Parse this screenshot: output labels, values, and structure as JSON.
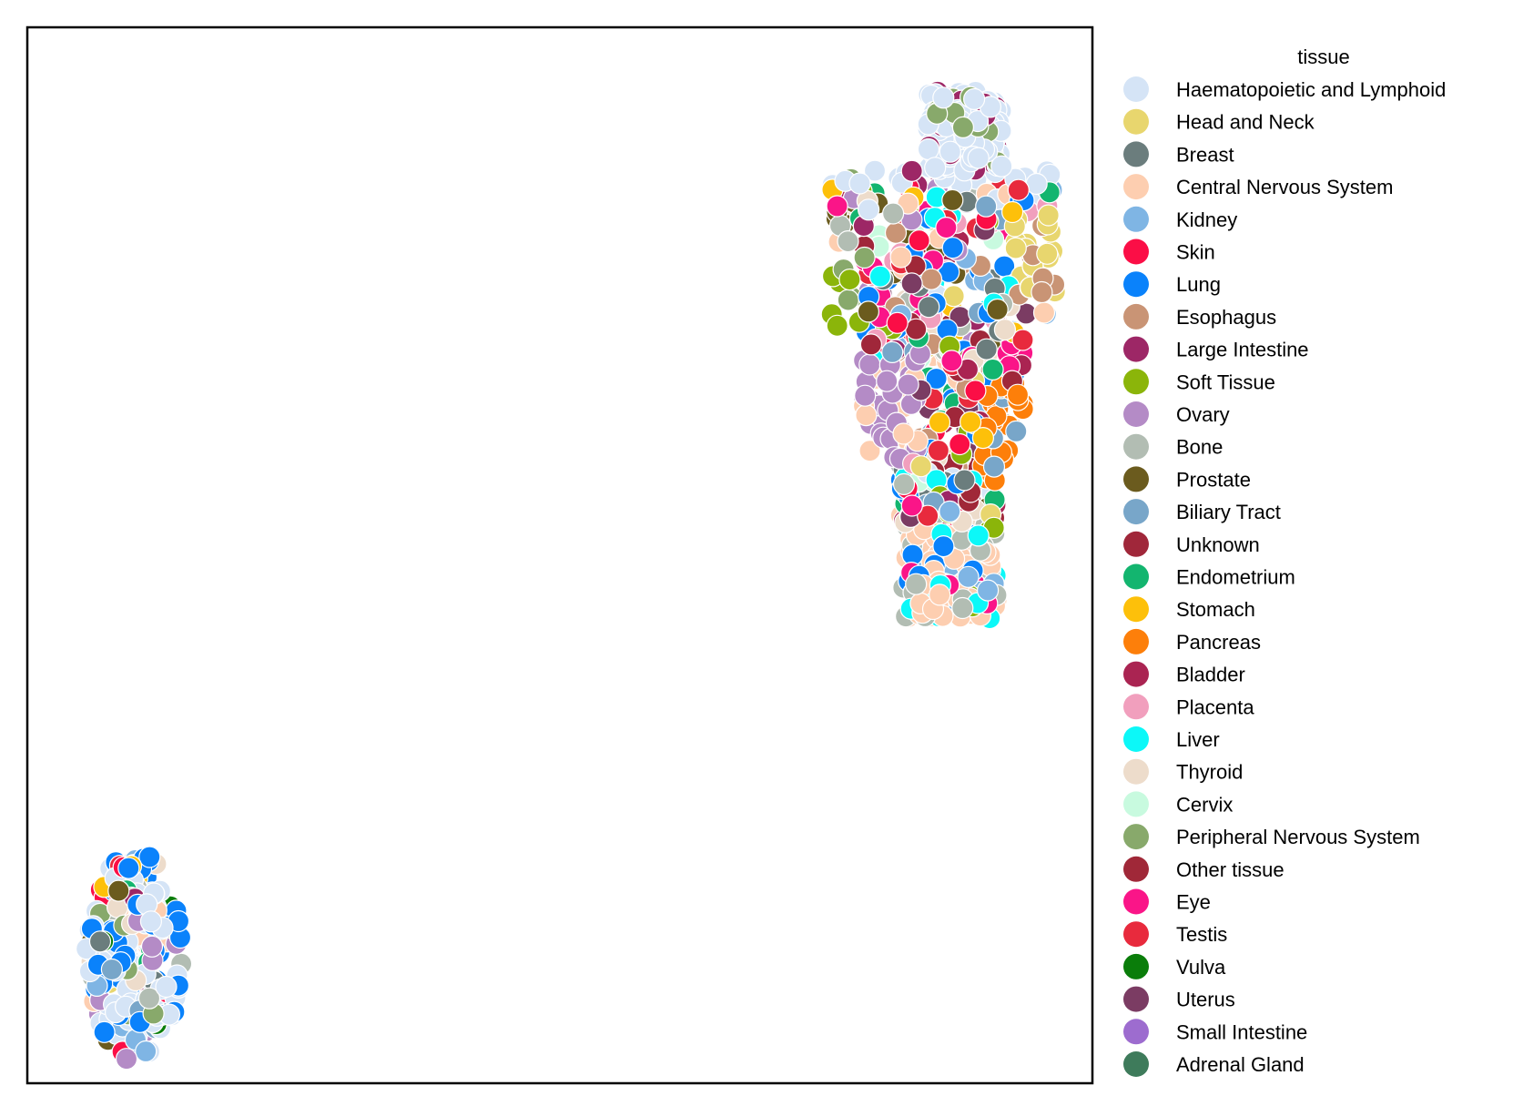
{
  "chart_data": {
    "type": "scatter",
    "title": "",
    "xlabel": "",
    "ylabel": "",
    "axes_ticks": "none",
    "grid": false,
    "legend": {
      "title": "tissue",
      "placement": "outside-right"
    },
    "categories": [
      {
        "name": "Haematopoietic and Lymphoid",
        "color": "#d5e4f6"
      },
      {
        "name": "Head and Neck",
        "color": "#e8d66e"
      },
      {
        "name": "Breast",
        "color": "#6b7d7d"
      },
      {
        "name": "Central Nervous System",
        "color": "#fdceb0"
      },
      {
        "name": "Kidney",
        "color": "#7fb5e4"
      },
      {
        "name": "Skin",
        "color": "#fb0e46"
      },
      {
        "name": "Lung",
        "color": "#0a82fb"
      },
      {
        "name": "Esophagus",
        "color": "#c99475"
      },
      {
        "name": "Large Intestine",
        "color": "#9d2766"
      },
      {
        "name": "Soft Tissue",
        "color": "#8bb50a"
      },
      {
        "name": "Ovary",
        "color": "#b48bc6"
      },
      {
        "name": "Bone",
        "color": "#b2bdb3"
      },
      {
        "name": "Prostate",
        "color": "#6b5b1e"
      },
      {
        "name": "Biliary Tract",
        "color": "#78a6c9"
      },
      {
        "name": "Unknown",
        "color": "#a0273a"
      },
      {
        "name": "Endometrium",
        "color": "#13b56f"
      },
      {
        "name": "Stomach",
        "color": "#fdc00a"
      },
      {
        "name": "Pancreas",
        "color": "#fd7f0a"
      },
      {
        "name": "Bladder",
        "color": "#aa2452"
      },
      {
        "name": "Placenta",
        "color": "#f19fbd"
      },
      {
        "name": "Liver",
        "color": "#0cf8f8"
      },
      {
        "name": "Thyroid",
        "color": "#eddccb"
      },
      {
        "name": "Cervix",
        "color": "#c8fadf"
      },
      {
        "name": "Peripheral Nervous System",
        "color": "#88a96b"
      },
      {
        "name": "Other tissue",
        "color": "#a02838"
      },
      {
        "name": "Eye",
        "color": "#fa1588"
      },
      {
        "name": "Testis",
        "color": "#e82a3d"
      },
      {
        "name": "Vulva",
        "color": "#0a7d0a"
      },
      {
        "name": "Uterus",
        "color": "#7b3c63"
      },
      {
        "name": "Small Intestine",
        "color": "#9d6ccf"
      },
      {
        "name": "Adrenal Gland",
        "color": "#3e7b5b"
      }
    ],
    "clusters": [
      {
        "name": "large cluster (upper right)",
        "x_center": 8.6,
        "y_center": 6.9,
        "x_spread": 1.0,
        "y_spread": 2.5,
        "approx_points": 900
      },
      {
        "name": "small cluster (lower left)",
        "x_center": 1.0,
        "y_center": 1.2,
        "x_spread": 0.45,
        "y_spread": 1.0,
        "approx_points": 260
      }
    ],
    "xlim": [
      0,
      10
    ],
    "ylim": [
      0,
      10
    ]
  }
}
